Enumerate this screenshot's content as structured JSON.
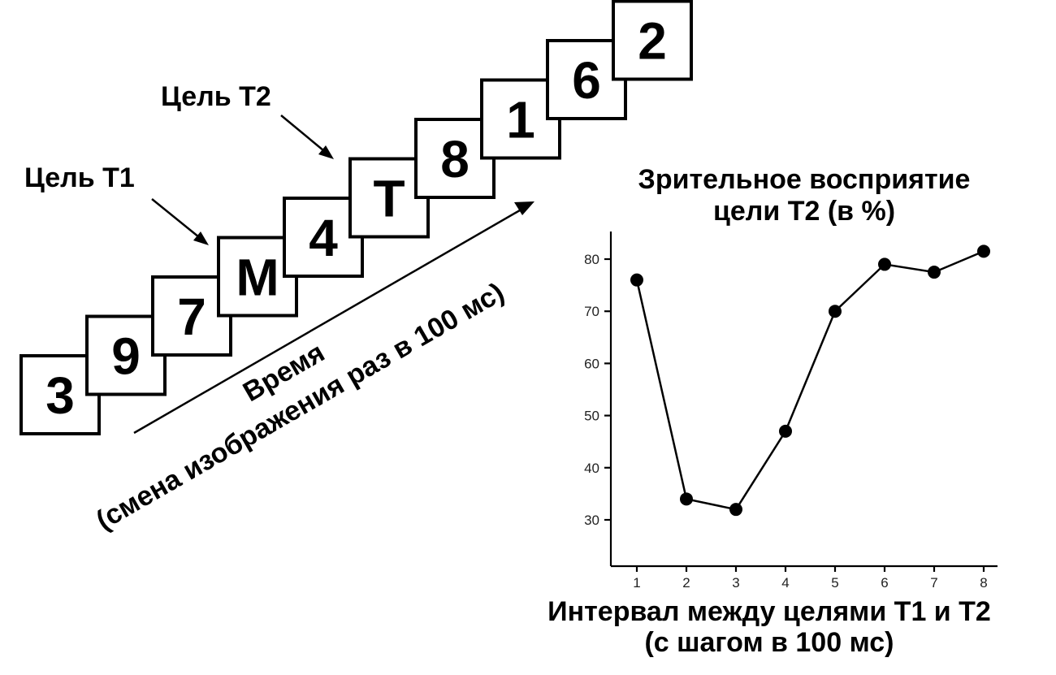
{
  "sequence": {
    "items": [
      "3",
      "9",
      "7",
      "M",
      "4",
      "T",
      "8",
      "1",
      "6",
      "2"
    ],
    "target_t1_label": "Цель Т1",
    "target_t2_label": "Цель Т2",
    "time_label_line1": "Время",
    "time_label_line2": "(смена изображения раз в 100 мс)"
  },
  "chart_data": {
    "type": "line",
    "title": "Зрительное восприятие цели Т2 (в %)",
    "title_lines": [
      "Зрительное восприятие",
      "цели Т2 (в %)"
    ],
    "xlabel": "Интервал между целями Т1 и Т2 (с шагом в 100 мс)",
    "xlabel_lines": [
      "Интервал между целями Т1 и Т2",
      "(с шагом в 100 мс)"
    ],
    "ylabel": "",
    "x": [
      1,
      2,
      3,
      4,
      5,
      6,
      7,
      8
    ],
    "values": [
      76,
      34,
      32,
      47,
      70,
      79,
      77.5,
      81.5
    ],
    "x_ticks": [
      1,
      2,
      3,
      4,
      5,
      6,
      7,
      8
    ],
    "y_ticks": [
      30,
      40,
      50,
      60,
      70,
      80
    ],
    "xlim": [
      1,
      8
    ],
    "ylim": [
      20,
      85
    ],
    "grid": false
  }
}
